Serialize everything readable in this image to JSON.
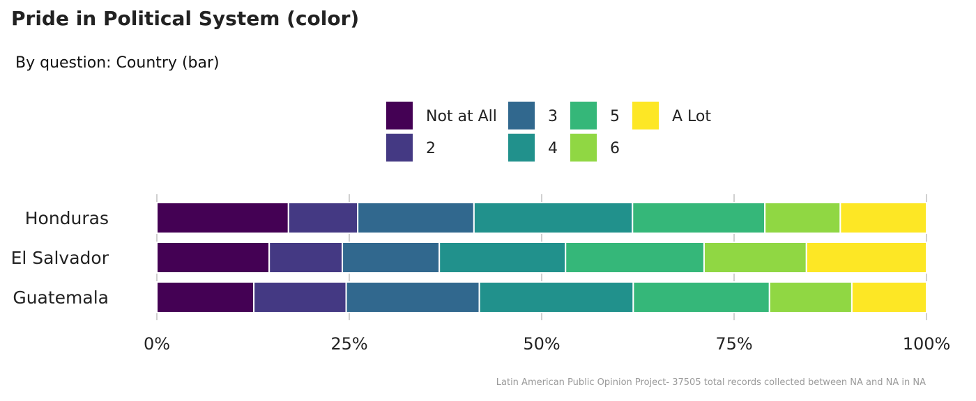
{
  "title": "Pride in Political System (color)",
  "subtitle": "By question: Country (bar)",
  "caption": "Latin American Public Opinion Project- 37505 total records collected between NA and NA in  NA",
  "chart_data": {
    "type": "bar",
    "orientation": "horizontal",
    "stacked": true,
    "normalized": true,
    "categories": [
      "Honduras",
      "El Salvador",
      "Guatemala"
    ],
    "x_ticks": [
      "0%",
      "25%",
      "50%",
      "75%",
      "100%"
    ],
    "xlim": [
      0,
      100
    ],
    "legend_position": "top",
    "grid": "vertical",
    "series": [
      {
        "name": "Not at All",
        "color": "#440154",
        "values": [
          17.1,
          14.6,
          12.6
        ]
      },
      {
        "name": "2",
        "color": "#443983",
        "values": [
          9.0,
          9.5,
          12.0
        ]
      },
      {
        "name": "3",
        "color": "#31688e",
        "values": [
          15.1,
          12.6,
          17.3
        ]
      },
      {
        "name": "4",
        "color": "#21918c",
        "values": [
          20.6,
          16.4,
          20.0
        ]
      },
      {
        "name": "5",
        "color": "#35b779",
        "values": [
          17.2,
          18.0,
          17.7
        ]
      },
      {
        "name": "6",
        "color": "#90d743",
        "values": [
          9.8,
          13.3,
          10.7
        ]
      },
      {
        "name": "A Lot",
        "color": "#fde725",
        "values": [
          11.2,
          15.6,
          9.7
        ]
      }
    ]
  }
}
